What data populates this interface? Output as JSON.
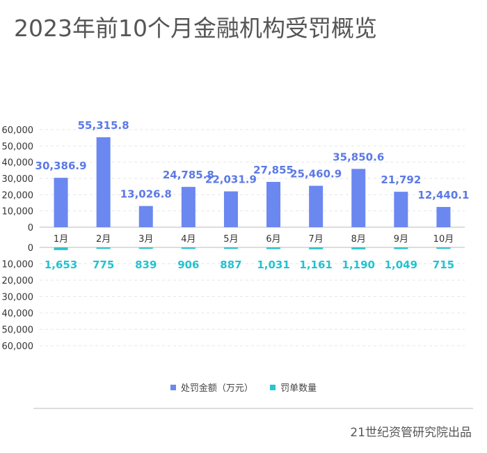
{
  "title": "2023年前10个月金融机构受罚概览",
  "chart_data": {
    "type": "bar",
    "title": "2023年前10个月金融机构受罚概览",
    "categories": [
      "1月",
      "2月",
      "3月",
      "4月",
      "5月",
      "6月",
      "7月",
      "8月",
      "9月",
      "10月"
    ],
    "series": [
      {
        "name": "处罚金额（万元）",
        "color": "#6b87f0",
        "label_color": "#5b79e6",
        "values": [
          30386.9,
          55315.8,
          13026.8,
          24785.8,
          22031.9,
          27855,
          25460.9,
          35850.6,
          21792,
          12440.1
        ],
        "labels": [
          "30,386.9",
          "55,315.8",
          "13,026.8",
          "24,785.8",
          "22,031.9",
          "27,855",
          "25,460.9",
          "35,850.6",
          "21,792",
          "12,440.1"
        ]
      },
      {
        "name": "罚单数量",
        "color": "#2bc3cf",
        "label_color": "#22c3d0",
        "values": [
          1653,
          775,
          839,
          906,
          887,
          1031,
          1161,
          1190,
          1049,
          715
        ],
        "labels": [
          "1,653",
          "775",
          "839",
          "906",
          "887",
          "1,031",
          "1,161",
          "1,190",
          "1,049",
          "715"
        ]
      }
    ],
    "top_axis": {
      "ylim": [
        0,
        60000
      ],
      "ticks": [
        "0",
        "10,000",
        "20,000",
        "30,000",
        "40,000",
        "50,000",
        "60,000"
      ]
    },
    "bottom_axis": {
      "ylim": [
        0,
        60000
      ],
      "inverted": true,
      "ticks": [
        "0",
        "10,000",
        "20,000",
        "30,000",
        "40,000",
        "50,000",
        "60,000"
      ]
    },
    "grid": true,
    "legend_position": "bottom"
  },
  "source": "21世纪资管研究院出品"
}
